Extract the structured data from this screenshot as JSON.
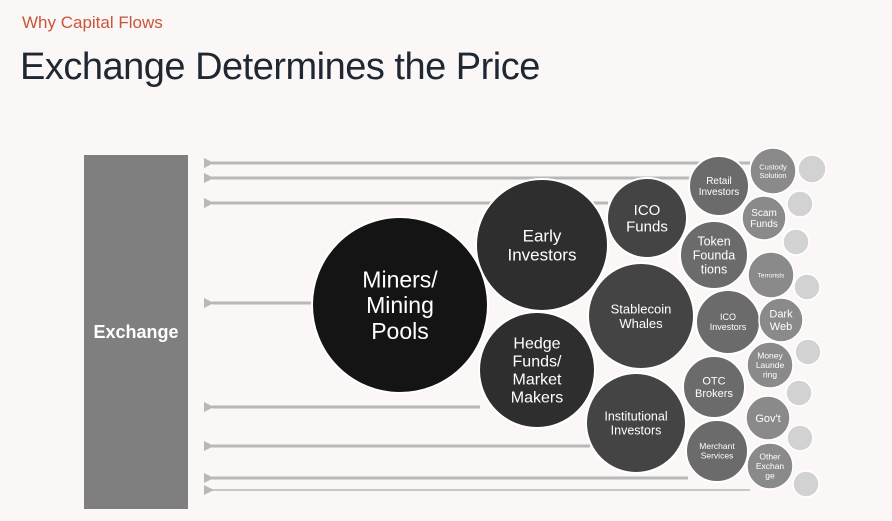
{
  "header": {
    "subtitle": "Why Capital Flows",
    "title": "Exchange Determines the Price"
  },
  "exchange": {
    "label": "Exchange"
  },
  "colors": {
    "background": "#fbf7f6",
    "accent": "#c9553a",
    "title": "#1f2733",
    "exchange_box": "#7f7f7f",
    "arrow": "#b8b8b8",
    "tier1": "#141414",
    "tier2": "#2e2e2e",
    "tier3": "#444444",
    "tier4": "#6b6b6b",
    "tier5": "#8a8a8a",
    "tier6": "#d2d2d2"
  },
  "nodes": [
    {
      "id": "miners",
      "lines": [
        "Miners/",
        "Mining",
        "Pools"
      ],
      "tier": 1
    },
    {
      "id": "early-investors",
      "lines": [
        "Early",
        "Investors"
      ],
      "tier": 2
    },
    {
      "id": "hedge-funds",
      "lines": [
        "Hedge",
        "Funds/",
        "Market",
        "Makers"
      ],
      "tier": 2
    },
    {
      "id": "ico-funds",
      "lines": [
        "ICO",
        "Funds"
      ],
      "tier": 3
    },
    {
      "id": "stablecoin-whales",
      "lines": [
        "Stablecoin",
        "Whales"
      ],
      "tier": 3
    },
    {
      "id": "institutional-investors",
      "lines": [
        "Institutional",
        "Investors"
      ],
      "tier": 3
    },
    {
      "id": "retail-investors",
      "lines": [
        "Retail",
        "Investors"
      ],
      "tier": 4
    },
    {
      "id": "token-foundations",
      "lines": [
        "Token",
        "Founda",
        "tions"
      ],
      "tier": 4
    },
    {
      "id": "ico-investors",
      "lines": [
        "ICO",
        "Investors"
      ],
      "tier": 4
    },
    {
      "id": "otc-brokers",
      "lines": [
        "OTC",
        "Brokers"
      ],
      "tier": 4
    },
    {
      "id": "merchant-services",
      "lines": [
        "Merchant",
        "Services"
      ],
      "tier": 4
    },
    {
      "id": "custody-solution",
      "lines": [
        "Custody",
        "Solution"
      ],
      "tier": 5
    },
    {
      "id": "scam-funds",
      "lines": [
        "Scam",
        "Funds"
      ],
      "tier": 5
    },
    {
      "id": "terrorists",
      "lines": [
        "Terrorists"
      ],
      "tier": 5
    },
    {
      "id": "dark-web",
      "lines": [
        "Dark",
        "Web"
      ],
      "tier": 5
    },
    {
      "id": "money-laundering",
      "lines": [
        "Money",
        "Launde",
        "ring"
      ],
      "tier": 5
    },
    {
      "id": "govt",
      "lines": [
        "Gov't"
      ],
      "tier": 5
    },
    {
      "id": "other-exchange",
      "lines": [
        "Other",
        "Exchan",
        "ge"
      ],
      "tier": 5
    },
    {
      "id": "unlabeled-1",
      "lines": [],
      "tier": 6
    },
    {
      "id": "unlabeled-2",
      "lines": [],
      "tier": 6
    },
    {
      "id": "unlabeled-3",
      "lines": [],
      "tier": 6
    },
    {
      "id": "unlabeled-4",
      "lines": [],
      "tier": 6
    },
    {
      "id": "unlabeled-5",
      "lines": [],
      "tier": 6
    },
    {
      "id": "unlabeled-6",
      "lines": [],
      "tier": 6
    },
    {
      "id": "unlabeled-7",
      "lines": [],
      "tier": 6
    },
    {
      "id": "unlabeled-8",
      "lines": [],
      "tier": 6
    },
    {
      "id": "unlabeled-9",
      "lines": [],
      "tier": 6
    },
    {
      "id": "unlabeled-10",
      "lines": [],
      "tier": 6
    }
  ],
  "arrows": [
    {
      "from": "custody-solution"
    },
    {
      "from": "retail-investors"
    },
    {
      "from": "ico-funds"
    },
    {
      "from": "miners"
    },
    {
      "from": "hedge-funds"
    },
    {
      "from": "institutional-investors"
    },
    {
      "from": "merchant-services"
    },
    {
      "from": "other-exchange"
    }
  ]
}
